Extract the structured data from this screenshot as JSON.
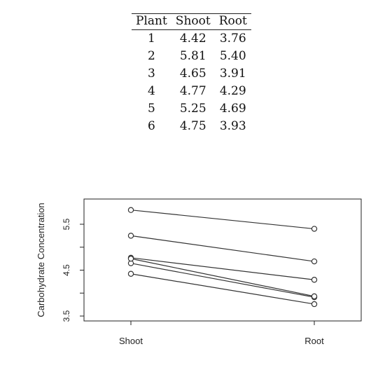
{
  "table": {
    "headers": [
      "Plant",
      "Shoot",
      "Root"
    ],
    "rows": [
      [
        "1",
        "4.42",
        "3.76"
      ],
      [
        "2",
        "5.81",
        "5.40"
      ],
      [
        "3",
        "4.65",
        "3.91"
      ],
      [
        "4",
        "4.77",
        "4.29"
      ],
      [
        "5",
        "5.25",
        "4.69"
      ],
      [
        "6",
        "4.75",
        "3.93"
      ]
    ]
  },
  "chart_data": {
    "type": "line",
    "categories": [
      "Shoot",
      "Root"
    ],
    "ylabel": "Carbohydrate Concentration",
    "xlabel": "",
    "ylim": [
      3.5,
      6.05
    ],
    "yticks": [
      3.5,
      4.5,
      5.5
    ],
    "grid": false,
    "legend": "none",
    "marker": "open-circle",
    "line_color": "#333333",
    "series": [
      {
        "values": [
          4.42,
          3.76
        ]
      },
      {
        "values": [
          5.81,
          5.4
        ]
      },
      {
        "values": [
          4.65,
          3.91
        ]
      },
      {
        "values": [
          4.77,
          4.29
        ]
      },
      {
        "values": [
          5.25,
          4.69
        ]
      },
      {
        "values": [
          4.75,
          3.93
        ]
      }
    ]
  }
}
